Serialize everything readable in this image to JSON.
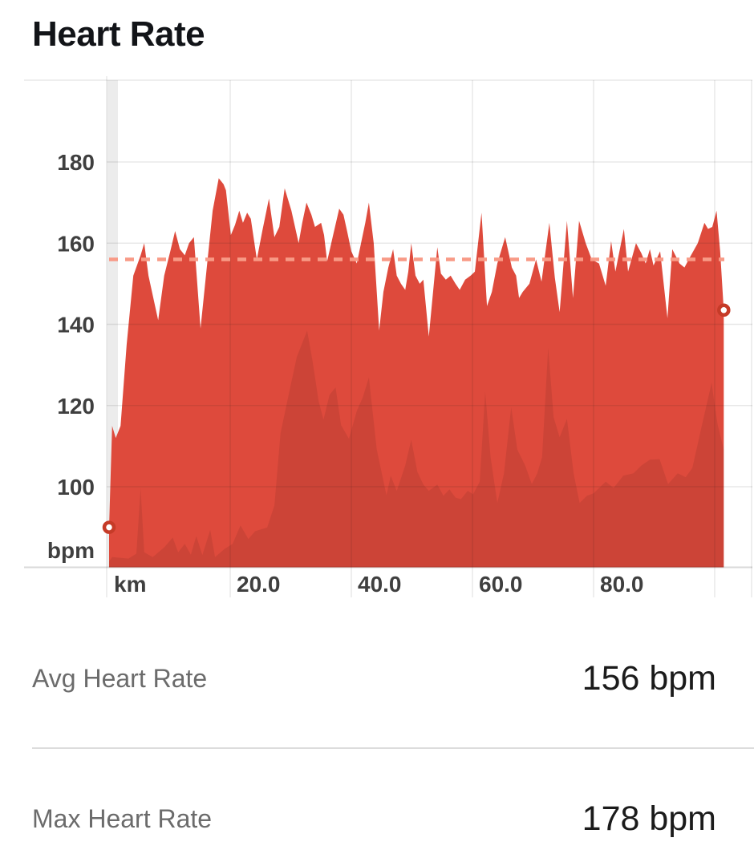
{
  "title": "Heart Rate",
  "chart_data": {
    "type": "area",
    "title": "Heart Rate",
    "x_unit_label": "km",
    "y_unit_label": "bpm",
    "y_ticks": [
      180,
      160,
      140,
      120,
      100
    ],
    "x_ticks": [
      {
        "km": 20,
        "label": "20.0"
      },
      {
        "km": 40,
        "label": "40.0"
      },
      {
        "km": 60,
        "label": "60.0"
      },
      {
        "km": 80,
        "label": "80.0"
      },
      {
        "km": 100,
        "label": ""
      }
    ],
    "y_range_bpm": [
      80,
      200
    ],
    "x_range_km": [
      0,
      101.5
    ],
    "grid": true,
    "avg_line_bpm": 156,
    "start_marker": {
      "km": 0,
      "bpm": 90
    },
    "end_marker": {
      "km": 101.5,
      "bpm": 143.5
    },
    "series": [
      {
        "name": "heart_rate_bpm",
        "points": [
          [
            0,
            90
          ],
          [
            0.5,
            115
          ],
          [
            1.1,
            112
          ],
          [
            1.9,
            115
          ],
          [
            2.9,
            135
          ],
          [
            4,
            152
          ],
          [
            5.2,
            157
          ],
          [
            5.8,
            160
          ],
          [
            6.5,
            152
          ],
          [
            8.1,
            141
          ],
          [
            9.1,
            152
          ],
          [
            10.1,
            158
          ],
          [
            10.9,
            163
          ],
          [
            11.7,
            158.5
          ],
          [
            12.5,
            157
          ],
          [
            13.2,
            160
          ],
          [
            14,
            161.5
          ],
          [
            15.1,
            139
          ],
          [
            16.2,
            155
          ],
          [
            17.1,
            168
          ],
          [
            18.1,
            176
          ],
          [
            18.9,
            174.5
          ],
          [
            19.3,
            173
          ],
          [
            20.1,
            162
          ],
          [
            20.8,
            164.5
          ],
          [
            21.5,
            168
          ],
          [
            22.1,
            165
          ],
          [
            22.8,
            167.5
          ],
          [
            23.4,
            166
          ],
          [
            24.4,
            156
          ],
          [
            25.3,
            163
          ],
          [
            26.4,
            171
          ],
          [
            27.3,
            161.5
          ],
          [
            28.1,
            164
          ],
          [
            29,
            173.5
          ],
          [
            30.1,
            168
          ],
          [
            31.3,
            160
          ],
          [
            31.9,
            165
          ],
          [
            32.6,
            170
          ],
          [
            33.4,
            167
          ],
          [
            34,
            164
          ],
          [
            35,
            165
          ],
          [
            35.5,
            162
          ],
          [
            36,
            155.5
          ],
          [
            37,
            162
          ],
          [
            38,
            168.5
          ],
          [
            38.7,
            167
          ],
          [
            39.3,
            163
          ],
          [
            40,
            158
          ],
          [
            40.9,
            155
          ],
          [
            41.6,
            160
          ],
          [
            42.3,
            165
          ],
          [
            42.9,
            170
          ],
          [
            43.7,
            160
          ],
          [
            44.6,
            138.5
          ],
          [
            45.3,
            148
          ],
          [
            46.1,
            154
          ],
          [
            46.9,
            158.5
          ],
          [
            47.5,
            152
          ],
          [
            48.2,
            150
          ],
          [
            48.9,
            148.5
          ],
          [
            49.4,
            153
          ],
          [
            49.9,
            160
          ],
          [
            50.6,
            152
          ],
          [
            51.3,
            150
          ],
          [
            51.9,
            151
          ],
          [
            52.8,
            137
          ],
          [
            53.5,
            148
          ],
          [
            54.2,
            159
          ],
          [
            54.8,
            152.5
          ],
          [
            55.6,
            151
          ],
          [
            56.4,
            152
          ],
          [
            57.2,
            150
          ],
          [
            57.9,
            148.5
          ],
          [
            58.8,
            151
          ],
          [
            59.7,
            152
          ],
          [
            60.4,
            153
          ],
          [
            61.5,
            167.5
          ],
          [
            62.4,
            144.5
          ],
          [
            63.2,
            148
          ],
          [
            64.1,
            155
          ],
          [
            65.4,
            161.5
          ],
          [
            66.5,
            154
          ],
          [
            67.2,
            152
          ],
          [
            67.7,
            146.5
          ],
          [
            68.3,
            148
          ],
          [
            69.4,
            150
          ],
          [
            70.5,
            156
          ],
          [
            71.4,
            150.5
          ],
          [
            72.7,
            165
          ],
          [
            73.6,
            151.5
          ],
          [
            74.4,
            143
          ],
          [
            75.6,
            165.5
          ],
          [
            76.6,
            146.5
          ],
          [
            77.6,
            165.5
          ],
          [
            78.7,
            160
          ],
          [
            79.7,
            156
          ],
          [
            80.9,
            155
          ],
          [
            82,
            149.5
          ],
          [
            82.9,
            160.5
          ],
          [
            83.6,
            153
          ],
          [
            85,
            163.5
          ],
          [
            85.7,
            153
          ],
          [
            87,
            160
          ],
          [
            87.9,
            157.5
          ],
          [
            88.6,
            155
          ],
          [
            89.3,
            158.5
          ],
          [
            89.9,
            154.5
          ],
          [
            91,
            158
          ],
          [
            92.2,
            141.5
          ],
          [
            93,
            158.5
          ],
          [
            94.2,
            155
          ],
          [
            95,
            154
          ],
          [
            95.9,
            156.5
          ],
          [
            97.2,
            160
          ],
          [
            98.3,
            165
          ],
          [
            98.9,
            163.5
          ],
          [
            99.6,
            164
          ],
          [
            100.3,
            168
          ],
          [
            100.9,
            158
          ],
          [
            101.5,
            143.5
          ]
        ]
      },
      {
        "name": "elevation_profile_relative",
        "points": [
          [
            0,
            0.012
          ],
          [
            0.5,
            0.021
          ],
          [
            3.2,
            0.018
          ],
          [
            4.5,
            0.028
          ],
          [
            5.2,
            0.163
          ],
          [
            5.8,
            0.031
          ],
          [
            7.2,
            0.021
          ],
          [
            9.1,
            0.041
          ],
          [
            10.5,
            0.061
          ],
          [
            11.4,
            0.031
          ],
          [
            12.5,
            0.048
          ],
          [
            13.5,
            0.026
          ],
          [
            14.4,
            0.064
          ],
          [
            15.4,
            0.025
          ],
          [
            16.7,
            0.077
          ],
          [
            17.5,
            0.021
          ],
          [
            19.1,
            0.038
          ],
          [
            20.4,
            0.048
          ],
          [
            21.7,
            0.086
          ],
          [
            23,
            0.058
          ],
          [
            24.1,
            0.074
          ],
          [
            26.1,
            0.082
          ],
          [
            27.3,
            0.127
          ],
          [
            28.3,
            0.275
          ],
          [
            29.7,
            0.357
          ],
          [
            31,
            0.432
          ],
          [
            32.7,
            0.486
          ],
          [
            33.6,
            0.423
          ],
          [
            34.6,
            0.341
          ],
          [
            35.4,
            0.303
          ],
          [
            36.4,
            0.354
          ],
          [
            37.4,
            0.369
          ],
          [
            38.3,
            0.292
          ],
          [
            39.6,
            0.264
          ],
          [
            40.9,
            0.321
          ],
          [
            41.9,
            0.349
          ],
          [
            42.9,
            0.39
          ],
          [
            44.2,
            0.242
          ],
          [
            45.8,
            0.148
          ],
          [
            46.5,
            0.188
          ],
          [
            47.5,
            0.157
          ],
          [
            48.9,
            0.209
          ],
          [
            49.9,
            0.262
          ],
          [
            50.9,
            0.196
          ],
          [
            51.9,
            0.17
          ],
          [
            52.8,
            0.157
          ],
          [
            54.2,
            0.17
          ],
          [
            55.2,
            0.147
          ],
          [
            56.2,
            0.16
          ],
          [
            57.2,
            0.143
          ],
          [
            58.1,
            0.14
          ],
          [
            59.2,
            0.157
          ],
          [
            60.1,
            0.15
          ],
          [
            61.2,
            0.176
          ],
          [
            62.1,
            0.361
          ],
          [
            63,
            0.226
          ],
          [
            64.1,
            0.132
          ],
          [
            65.2,
            0.193
          ],
          [
            66.4,
            0.329
          ],
          [
            67.4,
            0.242
          ],
          [
            68.7,
            0.209
          ],
          [
            69.8,
            0.171
          ],
          [
            70.7,
            0.193
          ],
          [
            71.5,
            0.226
          ],
          [
            72.5,
            0.451
          ],
          [
            73.4,
            0.308
          ],
          [
            74.4,
            0.267
          ],
          [
            75.6,
            0.305
          ],
          [
            76.7,
            0.193
          ],
          [
            77.7,
            0.132
          ],
          [
            78.9,
            0.147
          ],
          [
            80,
            0.152
          ],
          [
            82,
            0.176
          ],
          [
            83.3,
            0.163
          ],
          [
            84.9,
            0.188
          ],
          [
            86.6,
            0.193
          ],
          [
            87.9,
            0.209
          ],
          [
            89.3,
            0.221
          ],
          [
            90.9,
            0.222
          ],
          [
            92.3,
            0.171
          ],
          [
            93.9,
            0.193
          ],
          [
            95.2,
            0.185
          ],
          [
            96.3,
            0.204
          ],
          [
            97.9,
            0.292
          ],
          [
            98.5,
            0.325
          ],
          [
            99.5,
            0.379
          ],
          [
            100,
            0.333
          ],
          [
            100.5,
            0.292
          ],
          [
            101.5,
            0.242
          ]
        ]
      }
    ],
    "colors": {
      "area": "#de4a3c",
      "elevation_overlay": "rgba(0,0,0,0.08)",
      "avg_line": "#f89a86",
      "marker_ring": "#c63b28",
      "grid": "rgba(25,25,25,0.10)",
      "axis_bottom": "rgba(25,25,25,0.16)",
      "axis_text": "#3f3f3f",
      "band": "#ececec"
    }
  },
  "stats": [
    {
      "label": "Avg Heart Rate",
      "value": "156 bpm"
    },
    {
      "label": "Max Heart Rate",
      "value": "178 bpm"
    }
  ]
}
